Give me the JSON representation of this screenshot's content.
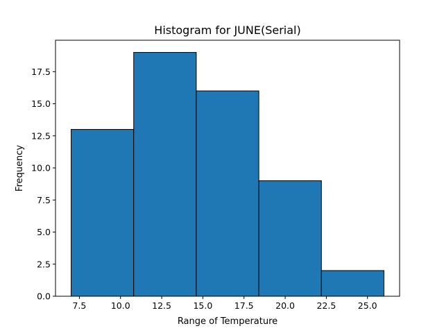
{
  "chart_data": {
    "type": "bar",
    "subtype": "histogram",
    "title": "Histogram for JUNE(Serial)",
    "xlabel": "Range of Temperature",
    "ylabel": "Frequency",
    "bins": [
      {
        "start": 7.0,
        "end": 10.8,
        "count": 13
      },
      {
        "start": 10.8,
        "end": 14.6,
        "count": 19
      },
      {
        "start": 14.6,
        "end": 18.4,
        "count": 16
      },
      {
        "start": 18.4,
        "end": 22.2,
        "count": 9
      },
      {
        "start": 22.2,
        "end": 26.0,
        "count": 2
      }
    ],
    "xlim": [
      6.05,
      26.95
    ],
    "ylim": [
      0,
      19.95
    ],
    "xticks": [
      7.5,
      10.0,
      12.5,
      15.0,
      17.5,
      20.0,
      22.5,
      25.0
    ],
    "xtick_labels": [
      "7.5",
      "10.0",
      "12.5",
      "15.0",
      "17.5",
      "20.0",
      "22.5",
      "25.0"
    ],
    "yticks": [
      0,
      2.5,
      5.0,
      7.5,
      10.0,
      12.5,
      15.0,
      17.5
    ],
    "ytick_labels": [
      "0.0",
      "2.5",
      "5.0",
      "7.5",
      "10.0",
      "12.5",
      "15.0",
      "17.5"
    ],
    "bar_color": "#1f77b4",
    "edge_color": "#000000",
    "grid": false,
    "legend": "none"
  }
}
